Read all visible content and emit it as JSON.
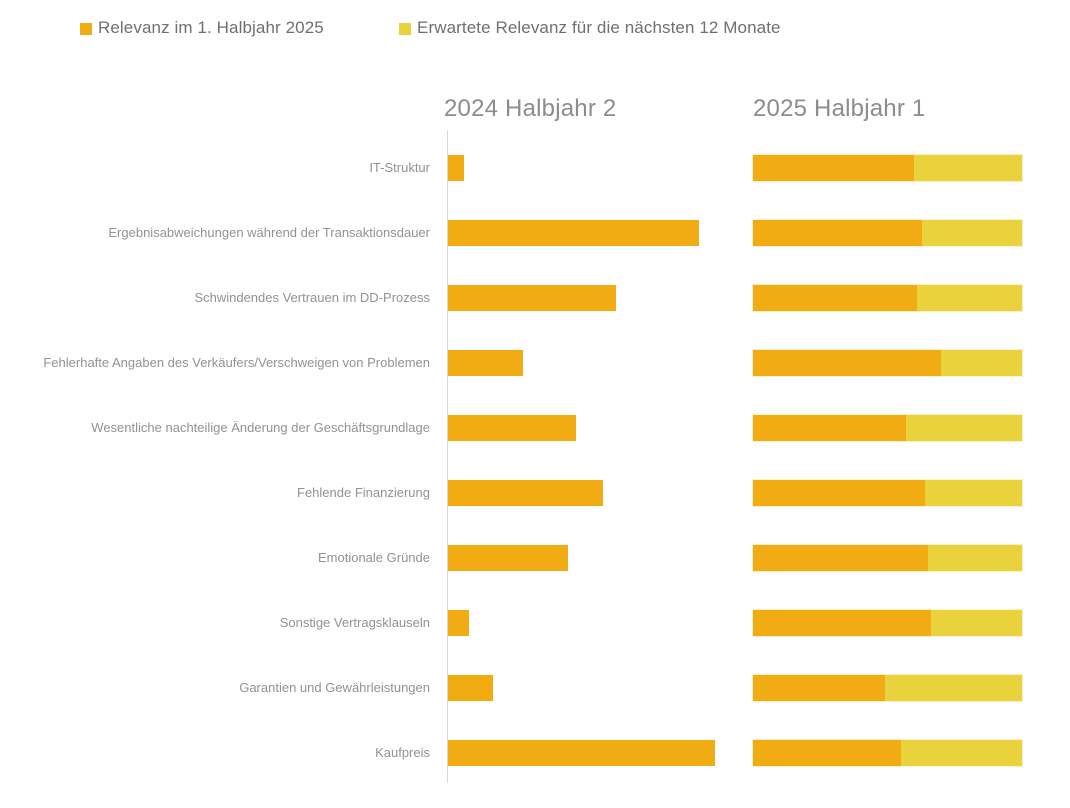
{
  "legend": {
    "items": [
      {
        "label": "Relevanz im 1. Halbjahr 2025",
        "color": "#F0AC12"
      },
      {
        "label": "Erwartete Relevanz für die nächsten 12 Monate",
        "color": "#E9D23B"
      }
    ]
  },
  "columns": {
    "left_header": "2024 Halbjahr 2",
    "right_header": "2025 Halbjahr 1"
  },
  "colors": {
    "relevance_orange": "#F0AC12",
    "expected_yellow": "#E9D23B",
    "axis_line": "#D9D9D9",
    "label_text": "#929292",
    "header_text": "#8C8C8C",
    "legend_text": "#6F6F6F"
  },
  "chart_data": {
    "type": "bar",
    "orientation": "horizontal",
    "title": "",
    "xlabel": "",
    "ylabel": "",
    "xlim": [
      0,
      100
    ],
    "grid": false,
    "legend_position": "top",
    "panels": [
      "2024 Halbjahr 2",
      "2025 Halbjahr 1"
    ],
    "categories": [
      "IT-Struktur",
      "Ergebnisabweichungen während der Transaktionsdauer",
      "Schwindendes Vertrauen im DD-Prozess",
      "Fehlerhafte Angaben des Verkäufers/Verschweigen von Problemen",
      "Wesentliche nachteilige Änderung der Geschäftsgrundlage",
      "Fehlende Finanzierung",
      "Emotionale Gründe",
      "Sonstige Vertragsklauseln",
      "Garantien und Gewährleistungen",
      "Kaufpreis"
    ],
    "series": [
      {
        "name": "2024 Halbjahr 2 (Relevanz, Vorperiode)",
        "panel": "left",
        "color": "#F0AC12",
        "values": [
          6,
          94,
          63,
          28,
          48,
          58,
          45,
          8,
          17,
          100
        ]
      },
      {
        "name": "Relevanz im 1. Halbjahr 2025",
        "panel": "right",
        "color": "#F0AC12",
        "values": [
          60,
          63,
          61,
          70,
          57,
          64,
          65,
          66,
          49,
          55
        ]
      },
      {
        "name": "Erwartete Relevanz für die nächsten 12 Monate",
        "panel": "right",
        "color": "#E9D23B",
        "values": [
          40,
          37,
          39,
          30,
          43,
          36,
          35,
          34,
          51,
          45
        ]
      }
    ],
    "note_units": "percent, estimated from bar lengths; right panel bars are stacked to 100%"
  }
}
